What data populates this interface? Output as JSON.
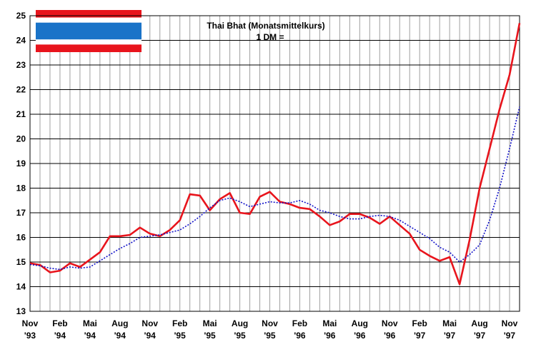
{
  "chart_data": {
    "type": "line",
    "title": "Thai Bhat (Monatsmittelkurs)",
    "subtitle": "1 DM =",
    "xlabel": "",
    "ylabel": "",
    "ylim": [
      13,
      25
    ],
    "y_ticks": [
      "13",
      "14",
      "15",
      "16",
      "17",
      "18",
      "19",
      "20",
      "21",
      "22",
      "23",
      "24",
      "25"
    ],
    "x_tick_labels": [
      [
        "Nov",
        "'93"
      ],
      [
        "Feb",
        "'94"
      ],
      [
        "Mai",
        "'94"
      ],
      [
        "Aug",
        "'94"
      ],
      [
        "Nov",
        "'94"
      ],
      [
        "Feb",
        "'95"
      ],
      [
        "Mai",
        "'95"
      ],
      [
        "Aug",
        "'95"
      ],
      [
        "Nov",
        "'95"
      ],
      [
        "Feb",
        "'96"
      ],
      [
        "Mai",
        "'96"
      ],
      [
        "Aug",
        "'96"
      ],
      [
        "Nov",
        "'96"
      ],
      [
        "Feb",
        "'97"
      ],
      [
        "Mai",
        "'97"
      ],
      [
        "Aug",
        "'97"
      ],
      [
        "Nov",
        "'97"
      ]
    ],
    "grid": true,
    "x": [
      "Nov 93",
      "Dez 93",
      "Jan 94",
      "Feb 94",
      "Mar 94",
      "Apr 94",
      "Mai 94",
      "Jun 94",
      "Jul 94",
      "Aug 94",
      "Sep 94",
      "Okt 94",
      "Nov 94",
      "Dez 94",
      "Jan 95",
      "Feb 95",
      "Mar 95",
      "Apr 95",
      "Mai 95",
      "Jun 95",
      "Jul 95",
      "Aug 95",
      "Sep 95",
      "Okt 95",
      "Nov 95",
      "Dez 95",
      "Jan 96",
      "Feb 96",
      "Mar 96",
      "Apr 96",
      "Mai 96",
      "Jun 96",
      "Jul 96",
      "Aug 96",
      "Sep 96",
      "Okt 96",
      "Nov 96",
      "Dez 96",
      "Jan 97",
      "Feb 97",
      "Mar 97",
      "Apr 97",
      "Mai 97",
      "Jun 97",
      "Jul 97",
      "Aug 97",
      "Sep 97",
      "Okt 97",
      "Nov 97",
      "Dez 97"
    ],
    "series": [
      {
        "style": "solid",
        "color": "#e8141c",
        "values": [
          14.95,
          14.88,
          14.58,
          14.65,
          14.95,
          14.8,
          15.1,
          15.4,
          16.05,
          16.05,
          16.1,
          16.4,
          16.15,
          16.05,
          16.3,
          16.7,
          17.75,
          17.7,
          17.1,
          17.55,
          17.8,
          17.0,
          16.95,
          17.65,
          17.85,
          17.45,
          17.35,
          17.2,
          17.15,
          16.85,
          16.5,
          16.65,
          16.95,
          16.95,
          16.8,
          16.55,
          16.85,
          16.5,
          16.15,
          15.5,
          15.25,
          15.05,
          15.2,
          14.1,
          15.9,
          18.0,
          19.6,
          21.2,
          22.6,
          24.7
        ]
      },
      {
        "style": "dotted",
        "color": "#1010c8",
        "values": [
          14.9,
          14.85,
          14.75,
          14.7,
          14.8,
          14.75,
          14.8,
          15.05,
          15.3,
          15.55,
          15.75,
          16.0,
          16.05,
          16.1,
          16.2,
          16.3,
          16.55,
          16.85,
          17.2,
          17.5,
          17.6,
          17.45,
          17.25,
          17.35,
          17.45,
          17.4,
          17.4,
          17.5,
          17.35,
          17.1,
          17.0,
          16.85,
          16.75,
          16.75,
          16.85,
          16.9,
          16.85,
          16.7,
          16.45,
          16.2,
          15.95,
          15.6,
          15.4,
          15.0,
          15.3,
          15.7,
          16.7,
          18.0,
          19.6,
          21.3
        ]
      }
    ]
  },
  "flag": {
    "colors": {
      "red": "#e8141c",
      "white": "#ffffff",
      "blue": "#1a73c8"
    }
  }
}
